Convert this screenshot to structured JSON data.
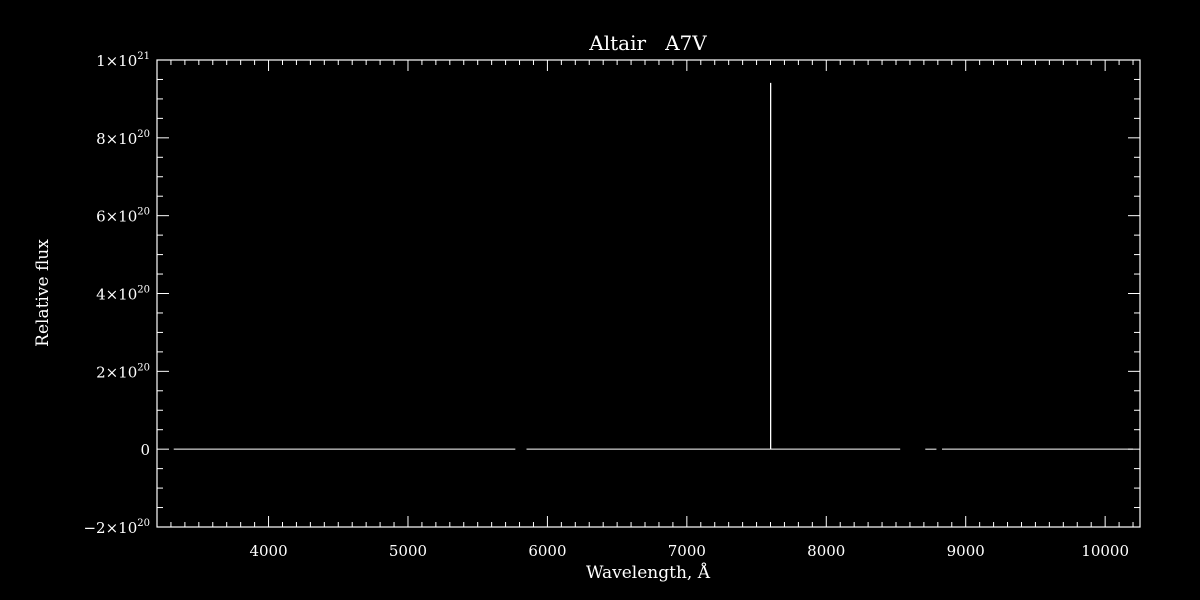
{
  "chart_data": {
    "type": "line",
    "title": "Altair   A7V",
    "xlabel": "Wavelength, Å",
    "ylabel": "Relative flux",
    "xlim": [
      3200,
      10250
    ],
    "ylim": [
      -2e+20,
      1e+21
    ],
    "grid": false,
    "colors": {
      "background": "#000000",
      "foreground": "#ffffff"
    },
    "x_ticks": [
      {
        "value": 4000,
        "label": "4000"
      },
      {
        "value": 5000,
        "label": "5000"
      },
      {
        "value": 6000,
        "label": "6000"
      },
      {
        "value": 7000,
        "label": "7000"
      },
      {
        "value": 8000,
        "label": "8000"
      },
      {
        "value": 9000,
        "label": "9000"
      },
      {
        "value": 10000,
        "label": "10000"
      }
    ],
    "y_ticks": [
      {
        "value": -2e+20,
        "mantissa": "−2×10",
        "exponent": "20"
      },
      {
        "value": 0,
        "mantissa": "0",
        "exponent": ""
      },
      {
        "value": 2e+20,
        "mantissa": "2×10",
        "exponent": "20"
      },
      {
        "value": 4e+20,
        "mantissa": "4×10",
        "exponent": "20"
      },
      {
        "value": 6e+20,
        "mantissa": "6×10",
        "exponent": "20"
      },
      {
        "value": 8e+20,
        "mantissa": "8×10",
        "exponent": "20"
      },
      {
        "value": 1e+21,
        "mantissa": "1×10",
        "exponent": "21"
      }
    ],
    "series": [
      {
        "segments": [
          [
            [
              3320,
              0
            ],
            [
              5770,
              0
            ]
          ],
          [
            [
              5850,
              0
            ],
            [
              7600,
              0
            ],
            [
              7600,
              9.4e+20
            ],
            [
              7602,
              9.4e+20
            ],
            [
              7602,
              0
            ],
            [
              8530,
              0
            ]
          ],
          [
            [
              8710,
              0
            ],
            [
              8790,
              0
            ]
          ],
          [
            [
              8830,
              0
            ],
            [
              10200,
              0
            ]
          ]
        ]
      }
    ]
  }
}
